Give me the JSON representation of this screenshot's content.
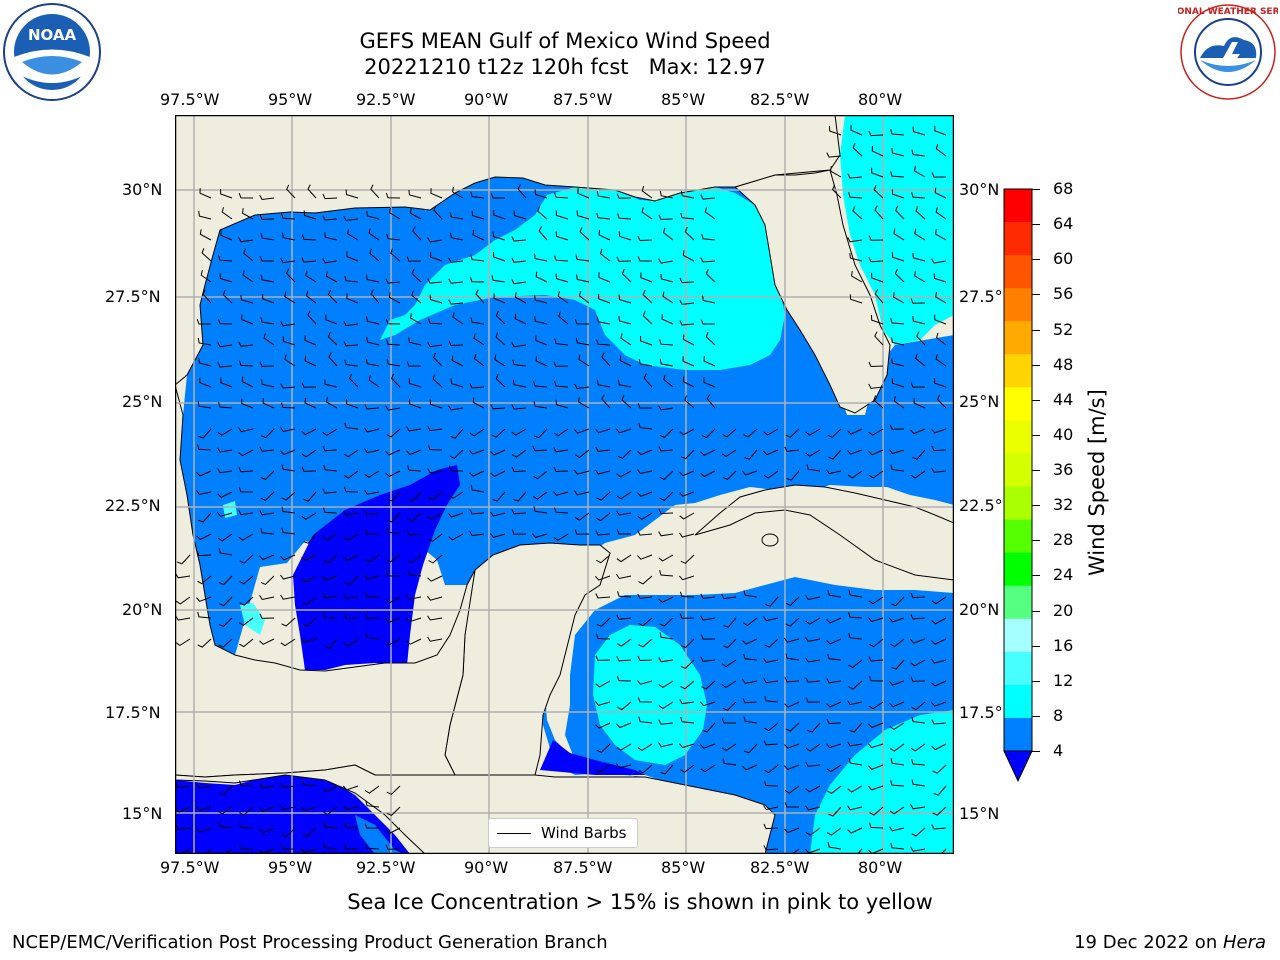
{
  "title": {
    "line1": "GEFS MEAN Gulf of Mexico Wind Speed",
    "line2": "20221210 t12z 120h fcst   Max: 12.97"
  },
  "logos": {
    "left": "NOAA",
    "right": "NATIONAL WEATHER SERVICE"
  },
  "map": {
    "lon_labels": [
      "97.5°W",
      "95°W",
      "92.5°W",
      "90°W",
      "87.5°W",
      "85°W",
      "82.5°W",
      "80°W"
    ],
    "lat_labels": [
      "30°N",
      "27.5°N",
      "25°N",
      "22.5°N",
      "20°N",
      "17.5°N",
      "15°N"
    ],
    "lat_labels_right": [
      "30°N",
      "27.5°",
      "25°N",
      "22.5°",
      "20°N",
      "17.5°",
      "15°N"
    ],
    "land_color": "#efedde",
    "ocean_colors": {
      "4-8": "#0080ff",
      "8-12": "#00ffff",
      "lt4": "#0000ff",
      "12-16": "#47ffff"
    }
  },
  "legend": {
    "label": "Wind Barbs"
  },
  "colorbar": {
    "label": "Wind Speed [m/s]",
    "ticks": [
      "68",
      "64",
      "60",
      "56",
      "52",
      "48",
      "44",
      "40",
      "36",
      "32",
      "28",
      "24",
      "20",
      "16",
      "12",
      "8",
      "4"
    ],
    "colors": [
      "#ff0000",
      "#ff2a00",
      "#ff5500",
      "#ff7f00",
      "#ffaa00",
      "#ffd400",
      "#ffff00",
      "#eaff00",
      "#d4ff00",
      "#aaff00",
      "#55ff00",
      "#00ff00",
      "#55ff7f",
      "#a6ffff",
      "#47ffff",
      "#00ffff",
      "#0080ff"
    ],
    "under_color": "#0000ff"
  },
  "note": "Sea Ice Concentration > 15% is shown in pink to yellow",
  "footer": {
    "left": "NCEP/EMC/Verification Post Processing Product Generation Branch",
    "date": "19 Dec 2022 on ",
    "host": "Hera"
  }
}
